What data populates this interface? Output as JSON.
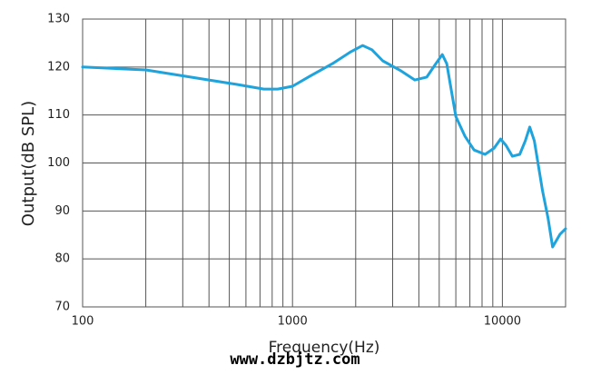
{
  "chart_data": {
    "type": "line",
    "xlabel": "Frequency(Hz)",
    "ylabel": "Output(dB SPL)",
    "watermark": "www.dzbjtz.com",
    "xscale": "log",
    "grid": true,
    "xlim": [
      100,
      20000
    ],
    "xticks": [
      100,
      1000,
      10000
    ],
    "ylim": [
      70,
      130
    ],
    "yticks": [
      70,
      80,
      90,
      100,
      110,
      120,
      130
    ],
    "series": [
      {
        "color": "#1fa3dc",
        "x": [
          100,
          200,
          400,
          540,
          730,
          850,
          1000,
          1210,
          1550,
          1900,
          2160,
          2390,
          2690,
          3290,
          3830,
          4360,
          4820,
          5170,
          5430,
          6000,
          6630,
          7330,
          8270,
          9130,
          9800,
          10400,
          11160,
          12100,
          12850,
          13500,
          14200,
          15530,
          16500,
          17350,
          18790,
          20000
        ],
        "values": [
          120,
          119.4,
          117.3,
          116.4,
          115.4,
          115.4,
          116,
          118.1,
          120.7,
          123.2,
          124.5,
          123.6,
          121.3,
          119.2,
          117.3,
          117.9,
          120.7,
          122.6,
          120.7,
          109.7,
          105.6,
          102.7,
          101.8,
          103.1,
          105,
          103.7,
          101.4,
          101.8,
          104.6,
          107.5,
          104.6,
          94.2,
          88.5,
          82.5,
          85.1,
          86.3
        ]
      }
    ]
  }
}
